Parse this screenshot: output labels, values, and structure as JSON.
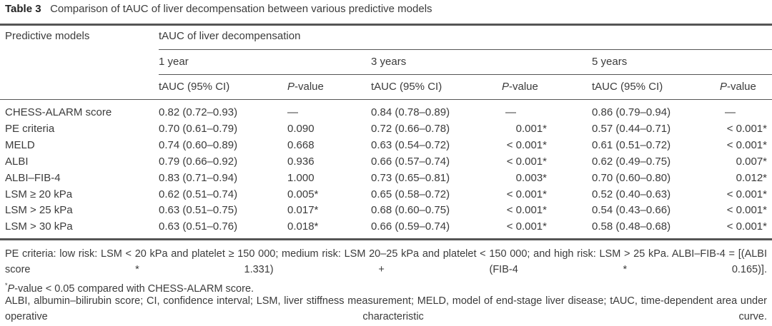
{
  "caption": {
    "label": "Table 3",
    "text": "Comparison of tAUC of liver decompensation between various predictive models"
  },
  "header": {
    "col0": "Predictive models",
    "group": "tAUC of liver decompensation",
    "periods": [
      "1 year",
      "3 years",
      "5 years"
    ],
    "sub_tauc": "tAUC (95% CI)",
    "sub_p_italic": "P",
    "sub_p_rest": "-value"
  },
  "rows": [
    {
      "model": "CHESS-ALARM score",
      "c": [
        "0.82 (0.72–0.93)",
        "—",
        "0.84 (0.78–0.89)",
        "—",
        "0.86 (0.79–0.94)",
        "—"
      ]
    },
    {
      "model": "PE criteria",
      "c": [
        "0.70 (0.61–0.79)",
        "0.090",
        "0.72 (0.66–0.78)",
        "0.001*",
        "0.57 (0.44–0.71)",
        "< 0.001*"
      ]
    },
    {
      "model": "MELD",
      "c": [
        "0.74 (0.60–0.89)",
        "0.668",
        "0.63 (0.54–0.72)",
        "< 0.001*",
        "0.61 (0.51–0.72)",
        "< 0.001*"
      ]
    },
    {
      "model": "ALBI",
      "c": [
        "0.79 (0.66–0.92)",
        "0.936",
        "0.66 (0.57–0.74)",
        "< 0.001*",
        "0.62 (0.49–0.75)",
        "0.007*"
      ]
    },
    {
      "model": "ALBI–FIB-4",
      "c": [
        "0.83 (0.71–0.94)",
        "1.000",
        "0.73 (0.65–0.81)",
        "0.003*",
        "0.70 (0.60–0.80)",
        "0.012*"
      ]
    },
    {
      "model": "LSM ≥ 20 kPa",
      "c": [
        "0.62 (0.51–0.74)",
        "0.005*",
        "0.65 (0.58–0.72)",
        "< 0.001*",
        "0.52 (0.40–0.63)",
        "< 0.001*"
      ]
    },
    {
      "model": "LSM > 25 kPa",
      "c": [
        "0.63 (0.51–0.75)",
        "0.017*",
        "0.68 (0.60–0.75)",
        "< 0.001*",
        "0.54 (0.43–0.66)",
        "< 0.001*"
      ]
    },
    {
      "model": "LSM > 30 kPa",
      "c": [
        "0.63 (0.51–0.76)",
        "0.018*",
        "0.66 (0.59–0.74)",
        "< 0.001*",
        "0.58 (0.48–0.68)",
        "< 0.001*"
      ]
    }
  ],
  "footnotes": {
    "pe": "PE criteria: low risk: LSM < 20 kPa and platelet ≥ 150 000; medium risk: LSM 20–25 kPa and platelet < 150 000; and high risk: LSM > 25 kPa. ALBI–FIB-4 = [(ALBI score * 1.331) + (FIB-4 * 0.165)].",
    "star_mark": "*",
    "star_p": "P",
    "star_text": "-value < 0.05 compared with CHESS-ALARM score.",
    "abbrev": "ALBI, albumin–bilirubin score; CI, confidence interval; LSM, liver stiffness measurement; MELD, model of end-stage liver disease; tAUC, time-dependent area under operative characteristic curve."
  }
}
